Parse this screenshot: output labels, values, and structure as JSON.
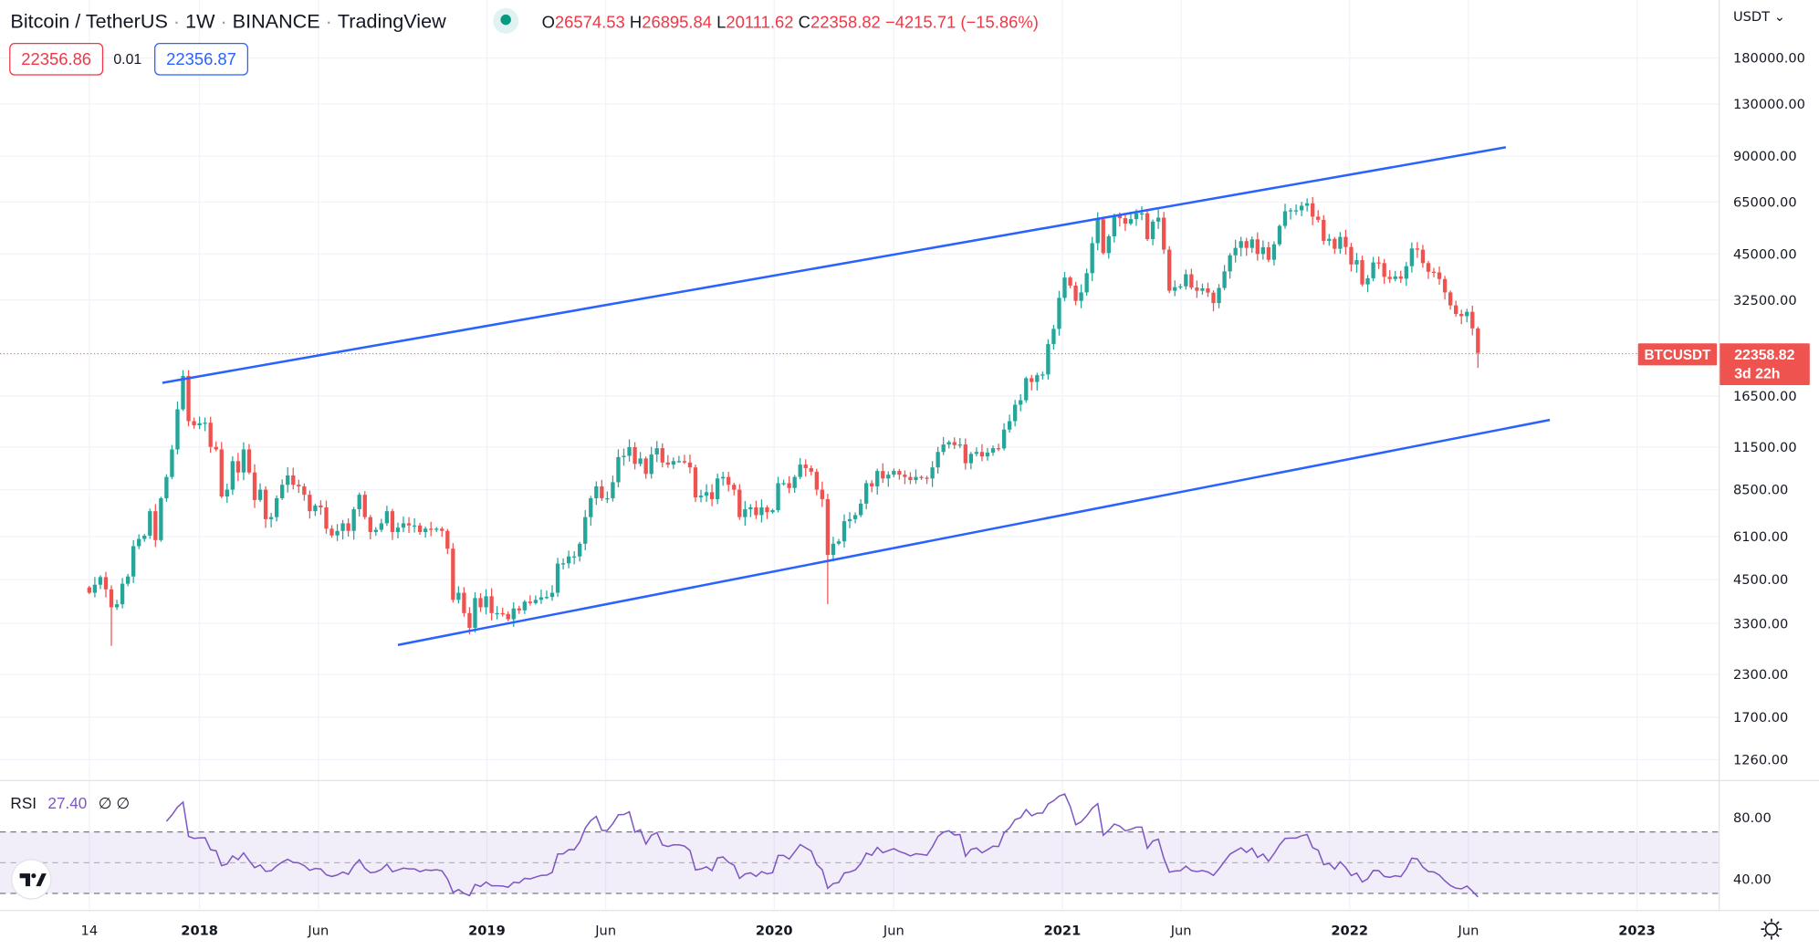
{
  "header": {
    "symbol": "Bitcoin / TetherUS",
    "sep": "·",
    "interval": "1W",
    "exchange": "BINANCE",
    "source": "TradingView",
    "o_label": "O",
    "open": "26574.53",
    "h_label": "H",
    "high": "26895.84",
    "l_label": "L",
    "low": "20111.62",
    "c_label": "C",
    "close": "22358.82",
    "change": "−4215.71 (−15.86%)"
  },
  "trade": {
    "sell": "22356.86",
    "spread": "0.01",
    "buy": "22356.87"
  },
  "currency": "USDT ⌄",
  "last_price": {
    "symbol": "BTCUSDT",
    "price": "22358.82",
    "countdown": "3d 22h"
  },
  "rsi": {
    "label": "RSI",
    "value": "27.40",
    "extra": "∅ ∅",
    "ticks": [
      "80.00",
      "40.00"
    ],
    "upper": 70,
    "middle": 50,
    "lower": 30,
    "period": 14
  },
  "colors": {
    "up": "#26a69a",
    "down": "#ef5350",
    "trendline": "#2962ff",
    "rsi": "#7e57c2",
    "text_red": "#f23645",
    "buy": "#2962ff"
  },
  "chart_data": {
    "type": "candlestick",
    "scale": "log",
    "price_ticks": [
      "180000.00",
      "130000.00",
      "90000.00",
      "65000.00",
      "45000.00",
      "32500.00",
      "16500.00",
      "11500.00",
      "8500.00",
      "6100.00",
      "4500.00",
      "3300.00",
      "2300.00",
      "1700.00",
      "1260.00"
    ],
    "time_ticks": [
      {
        "label": "14",
        "date": "2017-08-14"
      },
      {
        "label": "2018",
        "date": "2018-01-01"
      },
      {
        "label": "Jun",
        "date": "2018-06-01"
      },
      {
        "label": "2019",
        "date": "2019-01-01"
      },
      {
        "label": "Jun",
        "date": "2019-06-01"
      },
      {
        "label": "2020",
        "date": "2020-01-01"
      },
      {
        "label": "Jun",
        "date": "2020-06-01"
      },
      {
        "label": "2021",
        "date": "2021-01-01"
      },
      {
        "label": "Jun",
        "date": "2021-06-01"
      },
      {
        "label": "2022",
        "date": "2022-01-01"
      },
      {
        "label": "Jun",
        "date": "2022-06-01"
      },
      {
        "label": "2023",
        "date": "2023-01-01"
      }
    ],
    "start_week": "2017-08-14",
    "first_open": 4260,
    "closes": [
      4100,
      4340,
      4580,
      4200,
      3700,
      3780,
      4370,
      4600,
      5700,
      6000,
      6140,
      7300,
      5950,
      8000,
      9300,
      11300,
      15000,
      19000,
      13800,
      13400,
      13600,
      13650,
      11500,
      11300,
      8100,
      8500,
      10400,
      9600,
      11300,
      9600,
      7900,
      8500,
      6900,
      7000,
      8000,
      8800,
      9400,
      8800,
      8700,
      8200,
      7300,
      7600,
      7500,
      6450,
      6150,
      6350,
      6700,
      6350,
      7400,
      8200,
      7000,
      6300,
      6400,
      6700,
      7300,
      6300,
      6500,
      6700,
      6600,
      6600,
      6300,
      6450,
      6400,
      6450,
      6350,
      5600,
      3900,
      4100,
      3550,
      3200,
      3950,
      3700,
      4000,
      3550,
      3550,
      3530,
      3400,
      3670,
      3620,
      3850,
      3810,
      3900,
      3970,
      3980,
      4100,
      5040,
      5050,
      5300,
      5300,
      5800,
      7000,
      8000,
      8700,
      8000,
      8000,
      8960,
      10700,
      10800,
      11480,
      10200,
      10600,
      9500,
      10900,
      11400,
      10300,
      10150,
      10400,
      10400,
      10300,
      9950,
      8050,
      8150,
      8350,
      7950,
      9200,
      9300,
      8800,
      8500,
      7000,
      7400,
      7500,
      7100,
      7500,
      7250,
      7350,
      8900,
      8900,
      8600,
      9300,
      10150,
      9900,
      9650,
      8500,
      7950,
      5360,
      5800,
      5900,
      6800,
      6900,
      7100,
      7700,
      8900,
      8700,
      9700,
      9200,
      9450,
      9700,
      9450,
      9300,
      9100,
      9300,
      9250,
      9200,
      9950,
      11100,
      11700,
      11900,
      11650,
      11700,
      10250,
      10950,
      11100,
      10750,
      11050,
      11400,
      11380,
      13000,
      13800,
      15500,
      16000,
      18700,
      18200,
      19100,
      19200,
      23800,
      26500,
      33000,
      38100,
      36000,
      32300,
      34300,
      39300,
      48600,
      57500,
      45300,
      51000,
      59000,
      58000,
      55800,
      57600,
      60000,
      60000,
      50000,
      56600,
      58200,
      46400,
      34700,
      35600,
      35800,
      39000,
      35500,
      34700,
      35300,
      34250,
      31800,
      35400,
      39800,
      44600,
      47000,
      49300,
      47000,
      49900,
      45000,
      47200,
      43200,
      48200,
      54900,
      60900,
      61300,
      61300,
      63300,
      64400,
      58600,
      57300,
      49400,
      50100,
      46700,
      50800,
      47300,
      41800,
      43100,
      36300,
      37900,
      42400,
      42200,
      38300,
      37700,
      38400,
      37800,
      41300,
      46800,
      46400,
      42200,
      39700,
      39500,
      37700,
      34300,
      31300,
      29450,
      29000,
      29900,
      26600,
      22358.82
    ],
    "wick_overrides": [
      {
        "index": 4,
        "low": 2817
      },
      {
        "index": 17,
        "high": 19798
      },
      {
        "index": 134,
        "low": 3782
      },
      {
        "index": 252,
        "open": 26574.53,
        "high": 26895.84,
        "low": 20111.62
      }
    ]
  }
}
